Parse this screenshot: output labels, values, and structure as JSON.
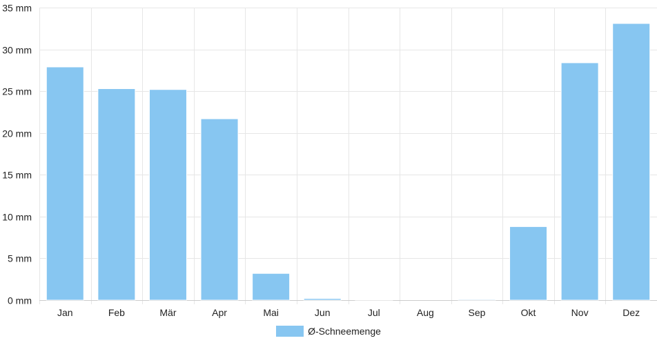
{
  "chart_data": {
    "type": "bar",
    "categories": [
      "Jan",
      "Feb",
      "Mär",
      "Apr",
      "Mai",
      "Jun",
      "Jul",
      "Aug",
      "Sep",
      "Okt",
      "Nov",
      "Dez"
    ],
    "series": [
      {
        "name": "Ø-Schneemenge",
        "values": [
          27.9,
          25.3,
          25.2,
          21.7,
          3.2,
          0.2,
          0.05,
          0.0,
          0.1,
          8.8,
          28.4,
          33.1
        ]
      }
    ],
    "y_unit": "mm",
    "ylim": [
      0,
      35
    ],
    "yticks": [
      0,
      5,
      10,
      15,
      20,
      25,
      30,
      35
    ],
    "ytick_labels": [
      "0 mm",
      "5 mm",
      "10 mm",
      "15 mm",
      "20 mm",
      "25 mm",
      "30 mm",
      "35 mm"
    ],
    "grid": true,
    "legend_position": "bottom",
    "colors": {
      "bar": "#87c6f1",
      "bar_border": "#ffffff",
      "grid": "#e6e6e6",
      "axis_text": "#222222"
    }
  }
}
